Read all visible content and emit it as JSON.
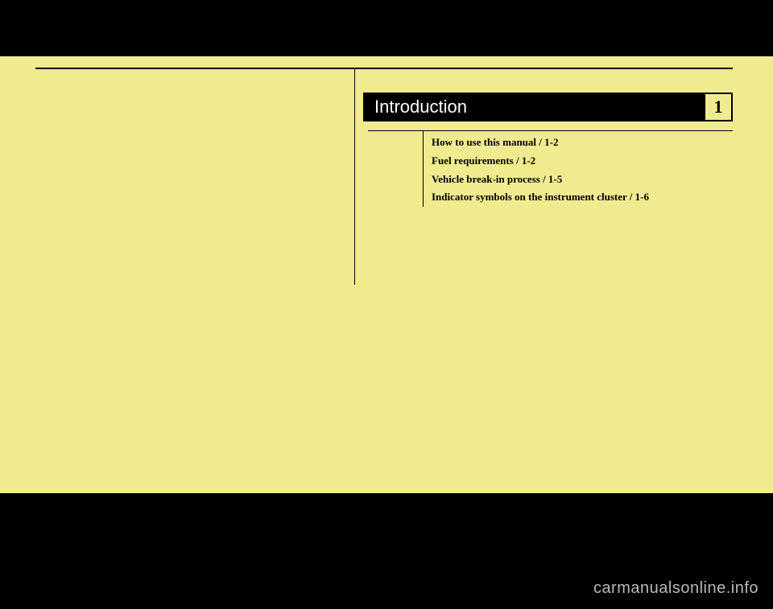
{
  "chapter": {
    "title": "Introduction",
    "number": "1"
  },
  "toc": {
    "items": [
      "How to use this manual / 1-2",
      "Fuel requirements / 1-2",
      "Vehicle break-in process / 1-5",
      "Indicator symbols on the instrument cluster / 1-6"
    ]
  },
  "watermark": "carmanualsonline.info",
  "colors": {
    "page_background": "#f0eb8f",
    "frame": "#000000",
    "header_background": "#000000",
    "header_text": "#ffffff",
    "text": "#000000",
    "watermark": "#b8b8b8"
  }
}
